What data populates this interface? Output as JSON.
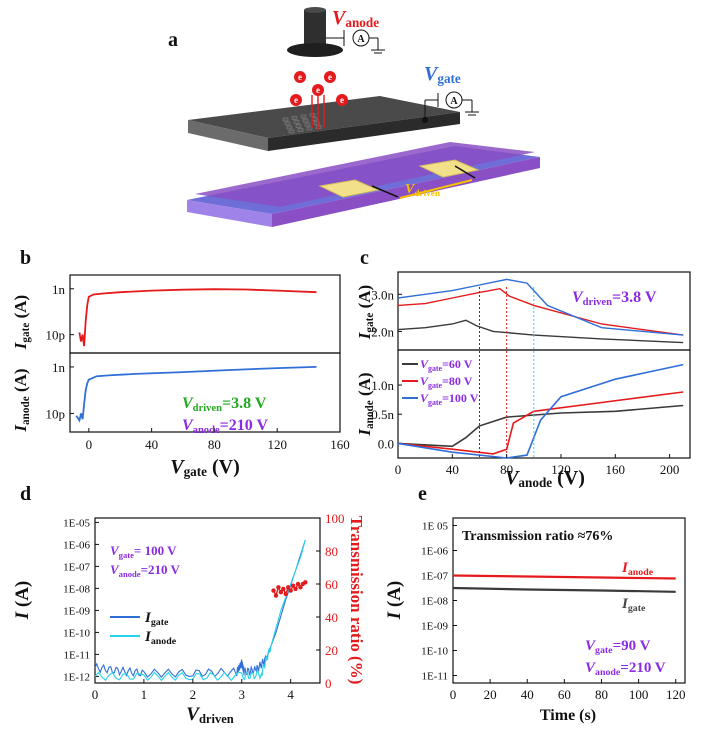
{
  "panels": {
    "a": "a",
    "b": "b",
    "c": "c",
    "d": "d",
    "e": "e"
  },
  "schematic": {
    "v_anode_main": "V",
    "v_anode_sub": "anode",
    "v_gate_main": "V",
    "v_gate_sub": "gate",
    "v_driven_main": "V",
    "v_driven_sub": "driven",
    "electron": "e",
    "ammeter": "A"
  },
  "colors": {
    "red": "#e41a1c",
    "blue": "#2f6fd6",
    "cyan": "#27d3e6",
    "dark": "#3a3a3a",
    "purple": "#8a2be2",
    "green": "#22a822",
    "device_top": "#4a4a4a",
    "substrate": "#8a4fc4",
    "electrode": "#f3e08a"
  },
  "chart_data": [
    {
      "panel": "b",
      "type": "line",
      "xlabel_main": "V",
      "xlabel_sub": "gate",
      "xlabel_unit": " (V)",
      "xticks": [
        "0",
        "40",
        "80",
        "120",
        "160"
      ],
      "xlim": [
        -12,
        160
      ],
      "top": {
        "ylabel_main": "I",
        "ylabel_sub": "gate",
        "ylabel_unit": " (A)",
        "yticks": [
          "1n",
          "10p"
        ],
        "ylim_log": [
          -11.8,
          -8.4
        ],
        "series": [
          {
            "color": "red",
            "points": [
              [
                -6,
                -10.9
              ],
              [
                -5,
                -11.3
              ],
              [
                -4,
                -11.0
              ],
              [
                -3,
                -11.5
              ],
              [
                -2,
                -10.4
              ],
              [
                -1,
                -9.7
              ],
              [
                0,
                -9.35
              ],
              [
                3,
                -9.25
              ],
              [
                10,
                -9.2
              ],
              [
                20,
                -9.15
              ],
              [
                40,
                -9.08
              ],
              [
                60,
                -9.04
              ],
              [
                80,
                -9.02
              ],
              [
                100,
                -9.03
              ],
              [
                120,
                -9.08
              ],
              [
                145,
                -9.15
              ]
            ]
          }
        ]
      },
      "bottom": {
        "ylabel_main": "I",
        "ylabel_sub": "anode",
        "ylabel_unit": " (A)",
        "yticks": [
          "1n",
          "10p"
        ],
        "ylim_log": [
          -11.8,
          -8.4
        ],
        "series": [
          {
            "color": "blue",
            "points": [
              [
                -8,
                -11.1
              ],
              [
                -6,
                -11.3
              ],
              [
                -5,
                -11.0
              ],
              [
                -4,
                -11.25
              ],
              [
                -3,
                -10.6
              ],
              [
                -2,
                -10.0
              ],
              [
                -1,
                -9.7
              ],
              [
                0,
                -9.55
              ],
              [
                5,
                -9.4
              ],
              [
                15,
                -9.35
              ],
              [
                30,
                -9.3
              ],
              [
                60,
                -9.22
              ],
              [
                90,
                -9.13
              ],
              [
                120,
                -9.05
              ],
              [
                145,
                -9.0
              ]
            ]
          }
        ]
      },
      "annot1_main": "V",
      "annot1_sub": "driven",
      "annot1_val": "=3.8 V",
      "annot2_main": "V",
      "annot2_sub": "anode",
      "annot2_val": "=210 V"
    },
    {
      "panel": "c",
      "type": "line",
      "xlabel_main": "V",
      "xlabel_sub": "anode",
      "xlabel_unit": " (V)",
      "xticks": [
        "0",
        "40",
        "80",
        "120",
        "160",
        "200"
      ],
      "xlim": [
        0,
        215
      ],
      "top": {
        "ylabel_main": "I",
        "ylabel_sub": "gate",
        "ylabel_unit": " (A)",
        "yticks": [
          "3.0n",
          "2.0n"
        ],
        "ylim": [
          1.5e-09,
          3.6e-09
        ],
        "series": [
          {
            "name": "Vgate=60 V",
            "color": "dark",
            "points": [
              [
                0,
                2.05e-09
              ],
              [
                20,
                2.1e-09
              ],
              [
                40,
                2.2e-09
              ],
              [
                50,
                2.3e-09
              ],
              [
                58,
                2.15e-09
              ],
              [
                70,
                2e-09
              ],
              [
                100,
                1.9e-09
              ],
              [
                150,
                1.8e-09
              ],
              [
                210,
                1.7e-09
              ]
            ]
          },
          {
            "name": "Vgate=80 V",
            "color": "red",
            "points": [
              [
                0,
                2.7e-09
              ],
              [
                20,
                2.75e-09
              ],
              [
                40,
                2.9e-09
              ],
              [
                60,
                3.05e-09
              ],
              [
                75,
                3.15e-09
              ],
              [
                82,
                2.95e-09
              ],
              [
                100,
                2.7e-09
              ],
              [
                150,
                2.2e-09
              ],
              [
                210,
                1.9e-09
              ]
            ]
          },
          {
            "name": "Vgate=100 V",
            "color": "blue",
            "points": [
              [
                0,
                2.9e-09
              ],
              [
                20,
                3e-09
              ],
              [
                40,
                3.1e-09
              ],
              [
                60,
                3.25e-09
              ],
              [
                80,
                3.4e-09
              ],
              [
                95,
                3.3e-09
              ],
              [
                110,
                2.7e-09
              ],
              [
                150,
                2.1e-09
              ],
              [
                210,
                1.9e-09
              ]
            ]
          }
        ],
        "annot_main": "V",
        "annot_sub": "driven",
        "annot_val": "=3.8 V"
      },
      "bottom": {
        "ylabel_main": "I",
        "ylabel_sub": "anode",
        "ylabel_unit": " (A)",
        "yticks": [
          "1.0n",
          "0.5n",
          "0.0"
        ],
        "ylim": [
          -2.5e-10,
          1.6e-09
        ],
        "series": [
          {
            "name": "Vgate=60 V",
            "color": "dark",
            "points": [
              [
                0,
                0
              ],
              [
                40,
                -5e-11
              ],
              [
                50,
                1e-10
              ],
              [
                60,
                3e-10
              ],
              [
                80,
                4.5e-10
              ],
              [
                120,
                5.2e-10
              ],
              [
                160,
                5.5e-10
              ],
              [
                210,
                6.5e-10
              ]
            ]
          },
          {
            "name": "Vgate=80 V",
            "color": "red",
            "points": [
              [
                0,
                0
              ],
              [
                40,
                -1e-10
              ],
              [
                70,
                -1.8e-10
              ],
              [
                80,
                -1e-10
              ],
              [
                85,
                3.5e-10
              ],
              [
                100,
                5.5e-10
              ],
              [
                150,
                7e-10
              ],
              [
                210,
                8.8e-10
              ]
            ]
          },
          {
            "name": "Vgate=100 V",
            "color": "blue",
            "points": [
              [
                0,
                0
              ],
              [
                40,
                -1.5e-10
              ],
              [
                80,
                -2.5e-10
              ],
              [
                95,
                -2e-10
              ],
              [
                105,
                4e-10
              ],
              [
                120,
                8e-10
              ],
              [
                160,
                1.1e-09
              ],
              [
                210,
                1.35e-09
              ]
            ]
          }
        ],
        "legend": [
          {
            "main": "V",
            "sub": "gate",
            "val": "=60 V",
            "color": "dark"
          },
          {
            "main": "V",
            "sub": "gate",
            "val": "=80 V",
            "color": "red"
          },
          {
            "main": "V",
            "sub": "gate",
            "val": "=100 V",
            "color": "blue"
          }
        ]
      }
    },
    {
      "panel": "d",
      "type": "line",
      "xlabel_main": "V",
      "xlabel_sub": "driven",
      "xticks": [
        "0",
        "1",
        "2",
        "3",
        "4"
      ],
      "xlim": [
        0,
        4.6
      ],
      "ylabel_main": "I",
      "ylabel_unit": " (A)",
      "yticks": [
        "1E-05",
        "1E-06",
        "1E-07",
        "1E-08",
        "1E-09",
        "1E-10",
        "1E-11",
        "1E-12"
      ],
      "ylim_log": [
        -12.3,
        -4.8
      ],
      "y2label": "Transmission ratio (%)",
      "y2ticks": [
        "100",
        "80",
        "60",
        "40",
        "20",
        "0"
      ],
      "y2lim": [
        0,
        100
      ],
      "series": [
        {
          "name": "Igate",
          "color": "blue",
          "points": [
            [
              0,
              -11.6
            ],
            [
              0.5,
              -11.75
            ],
            [
              1.0,
              -11.85
            ],
            [
              2.0,
              -11.85
            ],
            [
              2.9,
              -11.8
            ],
            [
              3.0,
              -11.4
            ],
            [
              3.05,
              -11.8
            ],
            [
              3.3,
              -11.7
            ],
            [
              3.5,
              -11.2
            ],
            [
              3.7,
              -10.0
            ],
            [
              3.9,
              -8.5
            ],
            [
              4.1,
              -7.2
            ],
            [
              4.3,
              -5.8
            ]
          ]
        },
        {
          "name": "Ianode",
          "color": "cyan",
          "points": [
            [
              0,
              -12.0
            ],
            [
              1.0,
              -12.0
            ],
            [
              2.0,
              -12.0
            ],
            [
              3.0,
              -12.0
            ],
            [
              3.4,
              -11.9
            ],
            [
              3.6,
              -10.6
            ],
            [
              3.8,
              -9.0
            ],
            [
              4.0,
              -7.8
            ],
            [
              4.2,
              -6.6
            ],
            [
              4.3,
              -5.8
            ]
          ]
        }
      ],
      "ratio_series": {
        "name": "Transmission ratio",
        "color": "red",
        "points": [
          [
            3.65,
            56
          ],
          [
            3.7,
            53
          ],
          [
            3.75,
            58
          ],
          [
            3.8,
            55
          ],
          [
            3.85,
            57
          ],
          [
            3.9,
            54
          ],
          [
            3.95,
            58
          ],
          [
            4.0,
            56
          ],
          [
            4.05,
            59
          ],
          [
            4.1,
            57
          ],
          [
            4.15,
            60
          ],
          [
            4.2,
            58
          ],
          [
            4.25,
            60
          ],
          [
            4.3,
            61
          ]
        ]
      },
      "legend": [
        {
          "main": "I",
          "sub": "gate",
          "color": "blue"
        },
        {
          "main": "I",
          "sub": "anode",
          "color": "cyan"
        }
      ],
      "annot1_main": "V",
      "annot1_sub": "gate",
      "annot1_val": "= 100 V",
      "annot2_main": "V",
      "annot2_sub": "anode",
      "annot2_val": "=210 V"
    },
    {
      "panel": "e",
      "type": "line",
      "xlabel": "Time (s)",
      "xticks": [
        "0",
        "20",
        "40",
        "60",
        "80",
        "100",
        "120"
      ],
      "xlim": [
        0,
        125
      ],
      "ylabel_main": "I",
      "ylabel_unit": " (A)",
      "yticks": [
        "1E 05",
        "1E-06",
        "1E-07",
        "1E-08",
        "1E-09",
        "1E-10",
        "1E-11"
      ],
      "ylim_log": [
        -11.3,
        -4.7
      ],
      "series": [
        {
          "name": "Ianode",
          "color": "red",
          "points": [
            [
              0,
              -7.0
            ],
            [
              40,
              -7.04
            ],
            [
              80,
              -7.08
            ],
            [
              120,
              -7.12
            ]
          ]
        },
        {
          "name": "Igate",
          "color": "dark",
          "points": [
            [
              0,
              -7.5
            ],
            [
              40,
              -7.56
            ],
            [
              80,
              -7.6
            ],
            [
              120,
              -7.65
            ]
          ]
        }
      ],
      "title": "Transmission ratio  ≈76%",
      "label_anode_main": "I",
      "label_anode_sub": "anode",
      "label_gate_main": "I",
      "label_gate_sub": "gate",
      "annot1_main": "V",
      "annot1_sub": "gate",
      "annot1_val": "=90 V",
      "annot2_main": "V",
      "annot2_sub": "anode",
      "annot2_val": "=210 V"
    }
  ]
}
